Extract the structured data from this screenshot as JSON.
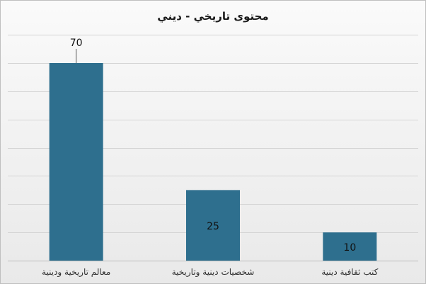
{
  "chart_data": {
    "type": "bar",
    "title": "محتوى تاريخي - ديني",
    "categories": [
      "معالم تاريخية ودينية",
      "شخصيات دينية وتاريخية",
      "كتب ثقافية دينية"
    ],
    "values": [
      70,
      25,
      10
    ],
    "data_labels": [
      "70",
      "25",
      "10"
    ],
    "xlabel": "",
    "ylabel": "",
    "ylim": [
      0,
      70
    ],
    "grid": true,
    "legend": "none",
    "bar_color": "#2e6f8e"
  }
}
